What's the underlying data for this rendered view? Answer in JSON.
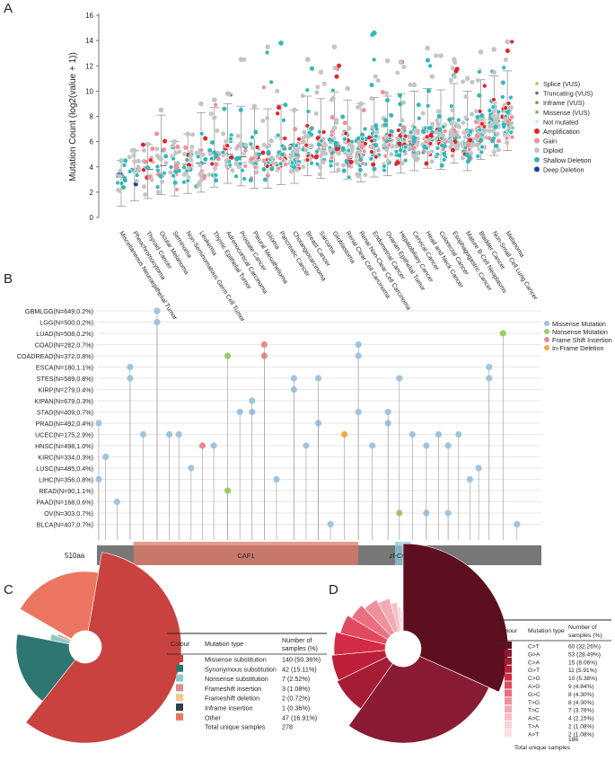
{
  "panel_labels": [
    "A",
    "B",
    "C",
    "D"
  ],
  "chart_data": [
    {
      "panel": "A",
      "type": "scatter",
      "ylabel": "Mutation Count (log2(value + 1))",
      "ylim": [
        0,
        16
      ],
      "yticks": [
        0,
        2,
        4,
        6,
        8,
        10,
        12,
        14,
        16
      ],
      "categories": [
        "Miscellaneous Neuroepithelial Tumor",
        "Pheochromocytoma",
        "Thyroid Cancer",
        "Ocular Melanoma",
        "Seminoma",
        "Non-Seminomatous Germ Cell Tumor",
        "Leukemia",
        "Thymic Epithelial Tumor",
        "Adrenocortical Carcinoma",
        "Prostate Cancer",
        "Pleural Mesothelioma",
        "Glioma",
        "Pancreatic Cancer",
        "Cholangiocarcinoma",
        "Breast Cancer",
        "Sarcoma",
        "Glioblastoma",
        "Renal Clear Cell Carcinoma",
        "Renal Non-Clear Cell Carcinoma",
        "Endometrial Cancer",
        "Ovarian Epithelial Tumor",
        "Hepatobiliary Cancer",
        "Cervical Cancer",
        "Head and Neck Cancer",
        "Colorectal Cancer",
        "Esophagogastric Cancer",
        "Mature B-Cell Neoplasms",
        "Bladder Cancer",
        "Non-Small Cell Lung Cancer",
        "Melanoma"
      ],
      "medians": [
        3.2,
        3.6,
        3.8,
        4.1,
        4.0,
        4.2,
        4.3,
        4.7,
        5.0,
        4.8,
        4.6,
        4.6,
        4.9,
        5.0,
        5.6,
        5.4,
        5.9,
        5.3,
        5.1,
        5.5,
        5.6,
        5.8,
        6.0,
        6.2,
        6.1,
        6.6,
        6.0,
        6.9,
        7.2,
        7.6
      ],
      "maxima": [
        4.5,
        5.3,
        5.8,
        8.5,
        6.0,
        6.6,
        9.0,
        9.3,
        9.8,
        12.5,
        8.8,
        13.5,
        13.8,
        8.5,
        12.5,
        11.5,
        13.5,
        10.2,
        9.0,
        14.6,
        12.4,
        12.3,
        10.5,
        13.4,
        12.8,
        12.5,
        11.0,
        13.1,
        13.3,
        13.9
      ],
      "legend": [
        {
          "name": "Splice (VUS)",
          "color": "#e8a640"
        },
        {
          "name": "Truncating (VUS)",
          "color": "#6b6b6b"
        },
        {
          "name": "Inframe (VUS)",
          "color": "#b27d3a"
        },
        {
          "name": "Missense (VUS)",
          "color": "#7fb04a"
        },
        {
          "name": "Not mutated",
          "color": "#c8e4f0"
        },
        {
          "name": "Amplification",
          "color": "#e0242a"
        },
        {
          "name": "Gain",
          "color": "#f08e9a"
        },
        {
          "name": "Diploid",
          "color": "#c4c4c4"
        },
        {
          "name": "Shallow Deletion",
          "color": "#33b8b8"
        },
        {
          "name": "Deep Deletion",
          "color": "#1d3f9a"
        }
      ]
    },
    {
      "panel": "B",
      "type": "lollipop",
      "protein_length_label": "510aa",
      "domains": [
        {
          "name": "CAF1",
          "start": 42,
          "end": 300,
          "color": "#e07a66"
        },
        {
          "name": "zf-CCCH",
          "start": 342,
          "end": 360,
          "color": "#8cc9e0"
        }
      ],
      "cancer_types": [
        "GBMLGG(N=649,0.2%)",
        "LGG(N=500,0.2%)",
        "LUAD(N=508,0.2%)",
        "COAD(N=282,0.7%)",
        "COADREAD(N=372,0.8%)",
        "ESCA(N=180,1.1%)",
        "STES(N=589,0.8%)",
        "KIRP(N=279,0.4%)",
        "KIPAN(N=679,0.3%)",
        "STAD(N=409,0.7%)",
        "PRAD(N=492,0.4%)",
        "UCEC(N=175,2.9%)",
        "HNSC(N=498,1.0%)",
        "KIRC(N=334,0.3%)",
        "LUSC(N=485,0.4%)",
        "LIHC(N=356,0.8%)",
        "READ(N=90,1.1%)",
        "PAAD(N=168,0.6%)",
        "OV(N=303,0.7%)",
        "BLCA(N=407,0.7%)"
      ],
      "legend": [
        {
          "name": "Missense Mutation",
          "color": "#9ec4e0"
        },
        {
          "name": "Nonsense Mutation",
          "color": "#9ccc6a"
        },
        {
          "name": "Frame Shift Insertion",
          "color": "#e88a8a"
        },
        {
          "name": "In-Frame Deletion",
          "color": "#f0a848"
        }
      ],
      "mutations": [
        {
          "pos": 2,
          "row": 10,
          "type": "Missense Mutation"
        },
        {
          "pos": 2,
          "row": 15,
          "type": "Missense Mutation"
        },
        {
          "pos": 10,
          "row": 13,
          "type": "Missense Mutation"
        },
        {
          "pos": 23,
          "row": 17,
          "type": "Missense Mutation"
        },
        {
          "pos": 38,
          "row": 5,
          "type": "Missense Mutation"
        },
        {
          "pos": 38,
          "row": 6,
          "type": "Missense Mutation"
        },
        {
          "pos": 53,
          "row": 11,
          "type": "Missense Mutation"
        },
        {
          "pos": 69,
          "row": 0,
          "type": "Missense Mutation"
        },
        {
          "pos": 69,
          "row": 1,
          "type": "Missense Mutation"
        },
        {
          "pos": 83,
          "row": 11,
          "type": "Missense Mutation"
        },
        {
          "pos": 94,
          "row": 11,
          "type": "Missense Mutation"
        },
        {
          "pos": 108,
          "row": 14,
          "type": "Missense Mutation"
        },
        {
          "pos": 121,
          "row": 12,
          "type": "Frame Shift Insertion"
        },
        {
          "pos": 134,
          "row": 12,
          "type": "Missense Mutation"
        },
        {
          "pos": 150,
          "row": 4,
          "type": "Nonsense Mutation"
        },
        {
          "pos": 150,
          "row": 16,
          "type": "Nonsense Mutation"
        },
        {
          "pos": 164,
          "row": 9,
          "type": "Missense Mutation"
        },
        {
          "pos": 178,
          "row": 9,
          "type": "Missense Mutation"
        },
        {
          "pos": 178,
          "row": 8,
          "type": "Missense Mutation"
        },
        {
          "pos": 192,
          "row": 4,
          "type": "Frame Shift Insertion"
        },
        {
          "pos": 192,
          "row": 3,
          "type": "Frame Shift Insertion"
        },
        {
          "pos": 206,
          "row": 15,
          "type": "Missense Mutation"
        },
        {
          "pos": 226,
          "row": 7,
          "type": "Missense Mutation"
        },
        {
          "pos": 226,
          "row": 6,
          "type": "Missense Mutation"
        },
        {
          "pos": 240,
          "row": 12,
          "type": "Missense Mutation"
        },
        {
          "pos": 254,
          "row": 10,
          "type": "Missense Mutation"
        },
        {
          "pos": 254,
          "row": 6,
          "type": "Missense Mutation"
        },
        {
          "pos": 268,
          "row": 19,
          "type": "Missense Mutation"
        },
        {
          "pos": 284,
          "row": 11,
          "type": "In-Frame Deletion"
        },
        {
          "pos": 300,
          "row": 3,
          "type": "Missense Mutation"
        },
        {
          "pos": 300,
          "row": 4,
          "type": "Missense Mutation"
        },
        {
          "pos": 300,
          "row": 9,
          "type": "Missense Mutation"
        },
        {
          "pos": 316,
          "row": 12,
          "type": "Missense Mutation"
        },
        {
          "pos": 334,
          "row": 10,
          "type": "Missense Mutation"
        },
        {
          "pos": 334,
          "row": 9,
          "type": "Missense Mutation"
        },
        {
          "pos": 347,
          "row": 18,
          "type": "Nonsense Mutation"
        },
        {
          "pos": 347,
          "row": 6,
          "type": "Missense Mutation"
        },
        {
          "pos": 362,
          "row": 11,
          "type": "Missense Mutation"
        },
        {
          "pos": 378,
          "row": 18,
          "type": "Missense Mutation"
        },
        {
          "pos": 378,
          "row": 12,
          "type": "Missense Mutation"
        },
        {
          "pos": 392,
          "row": 11,
          "type": "Missense Mutation"
        },
        {
          "pos": 403,
          "row": 12,
          "type": "Missense Mutation"
        },
        {
          "pos": 403,
          "row": 18,
          "type": "Missense Mutation"
        },
        {
          "pos": 415,
          "row": 11,
          "type": "Missense Mutation"
        },
        {
          "pos": 428,
          "row": 15,
          "type": "Missense Mutation"
        },
        {
          "pos": 438,
          "row": 14,
          "type": "Missense Mutation"
        },
        {
          "pos": 450,
          "row": 5,
          "type": "Missense Mutation"
        },
        {
          "pos": 450,
          "row": 6,
          "type": "Missense Mutation"
        },
        {
          "pos": 466,
          "row": 2,
          "type": "Nonsense Mutation"
        },
        {
          "pos": 482,
          "row": 19,
          "type": "Missense Mutation"
        }
      ]
    },
    {
      "panel": "C",
      "type": "pie",
      "title": "Mutation type",
      "table_headers": [
        "Colour",
        "Mutation type",
        "Number of samples (%)"
      ],
      "slices": [
        {
          "label": "Missense substitution",
          "value": 140,
          "text": "140 (50.36%)",
          "color": "#c9423f"
        },
        {
          "label": "Synonymous substitution",
          "value": 42,
          "text": "42 (15.11%)",
          "color": "#2f7572"
        },
        {
          "label": "Nonsense substitution",
          "value": 7,
          "text": "7 (2.52%)",
          "color": "#8ccbc5"
        },
        {
          "label": "Frameshift insertion",
          "value": 3,
          "text": "3 (1.08%)",
          "color": "#d98c93"
        },
        {
          "label": "Frameshift deletion",
          "value": 2,
          "text": "2 (0.72%)",
          "color": "#f0c892"
        },
        {
          "label": "Inframe    insertion",
          "value": 1,
          "text": "1 (0.36%)",
          "color": "#2e3e4e"
        },
        {
          "label": "Other",
          "value": 47,
          "text": "47 (16.91%)",
          "color": "#ec7561"
        }
      ],
      "total_label": "Total unique samples",
      "total": "278"
    },
    {
      "panel": "D",
      "type": "pie",
      "title": "Mutation type",
      "table_headers": [
        "Colour",
        "Mutation type",
        "Number of samples (%)"
      ],
      "slices": [
        {
          "label": "C>T",
          "value": 60,
          "text": "60 (32.26%)",
          "color": "#5e0f1f"
        },
        {
          "label": "G>A",
          "value": 53,
          "text": "53 (28.49%)",
          "color": "#8a1b35"
        },
        {
          "label": "C>A",
          "value": 15,
          "text": "15 (8.06%)",
          "color": "#a51c35"
        },
        {
          "label": "G>T",
          "value": 11,
          "text": "11 (5.91%)",
          "color": "#bd1f38"
        },
        {
          "label": "C>G",
          "value": 10,
          "text": "10 (5.38%)",
          "color": "#d42a46"
        },
        {
          "label": "A>G",
          "value": 9,
          "text": "9 (4.84%)",
          "color": "#e24a60"
        },
        {
          "label": "G>C",
          "value": 8,
          "text": "8 (4.30%)",
          "color": "#ea6f81"
        },
        {
          "label": "T>G",
          "value": 8,
          "text": "8 (4.30%)",
          "color": "#f0909d"
        },
        {
          "label": "T>C",
          "value": 7,
          "text": "7 (3.76%)",
          "color": "#f4aab4"
        },
        {
          "label": "A>C",
          "value": 4,
          "text": "4 (2.15%)",
          "color": "#f7c0c7"
        },
        {
          "label": "T>A",
          "value": 2,
          "text": "2 (1.08%)",
          "color": "#f9d2d7"
        },
        {
          "label": "A>T",
          "value": 2,
          "text": "2 (1.08%)",
          "color": "#fbe1e4"
        }
      ],
      "total_label": "Total unique samples",
      "total": "186"
    }
  ]
}
